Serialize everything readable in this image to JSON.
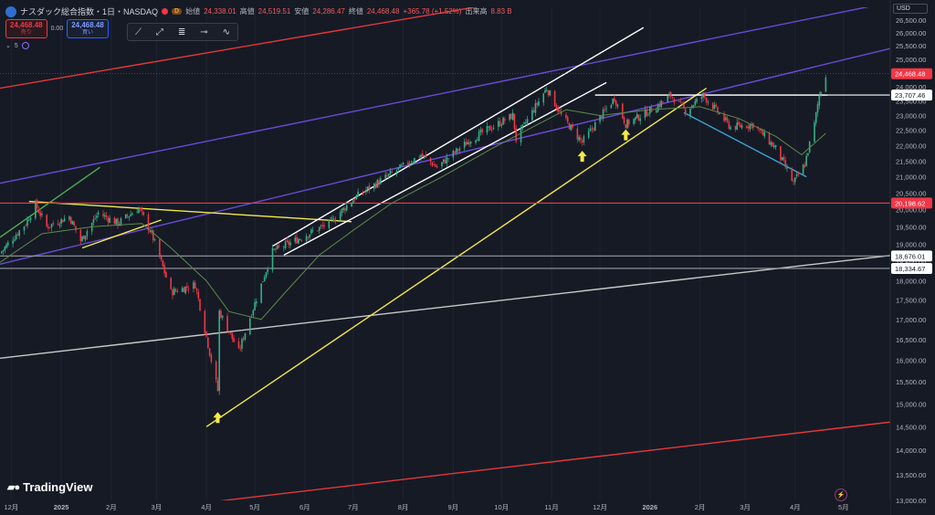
{
  "header": {
    "symbol": "ナスダック総合指数・1日・NASDAQ",
    "badge": "D",
    "open_label": "始値",
    "open_value": "24,338.01",
    "high_label": "高値",
    "high_value": "24,519.51",
    "low_label": "安値",
    "low_value": "24,286.47",
    "close_label": "終値",
    "close_value": "24,468.48",
    "change": "+365.78 (+1.52%)",
    "volume_label": "出来高",
    "volume_value": "8.83 B"
  },
  "trade": {
    "sell_price": "24,468.48",
    "sell_label": "売り",
    "spread": "0.00",
    "buy_price": "24,468.48",
    "buy_label": "買い"
  },
  "indicator": {
    "label": "5"
  },
  "currency": "USD",
  "brand": "TradingView",
  "colors": {
    "background": "#161a25",
    "candle_up": "#33b089",
    "candle_down": "#f23645",
    "ma": "#5d8a4a",
    "yellow_line": "#f5e94a",
    "red_line": "#e53838",
    "purple_line": "#6a4bd8",
    "white_line": "#e8e8e8",
    "cyan_line": "#3aa7d6",
    "arrow": "#f5e94a"
  },
  "chart_data": {
    "type": "candlestick",
    "symbol": "ナスダック総合指数",
    "timeframe": "1日",
    "y_scale": "log",
    "ylim": [
      13000,
      27000
    ],
    "y_ticks": [
      13000,
      13500,
      14000,
      14500,
      15000,
      15500,
      16000,
      16500,
      17000,
      17500,
      18000,
      18500,
      19000,
      19500,
      20000,
      20500,
      21000,
      21500,
      22000,
      22500,
      23000,
      23500,
      24000,
      24500,
      25000,
      25500,
      26000,
      26500
    ],
    "y_tick_labels": [
      "13,000.00",
      "13,500.00",
      "14,000.00",
      "14,500.00",
      "15,000.00",
      "15,500.00",
      "16,000.00",
      "16,500.00",
      "17,000.00",
      "17,500.00",
      "18,000.00",
      "18,500.00",
      "19,000.00",
      "19,500.00",
      "20,000.00",
      "20,500.00",
      "21,000.00",
      "21,500.00",
      "22,000.00",
      "22,500.00",
      "23,000.00",
      "23,500.00",
      "24,000.00",
      "24,500.00",
      "25,000.00",
      "25,500.00",
      "26,000.00",
      "26,500.00"
    ],
    "x_range": [
      "2024-11-24",
      "2026-05-30"
    ],
    "x_ticks": [
      {
        "date": "2024-12-01",
        "label": "12月",
        "bold": false
      },
      {
        "date": "2025-01-01",
        "label": "2025",
        "bold": true
      },
      {
        "date": "2025-02-01",
        "label": "2月",
        "bold": false
      },
      {
        "date": "2025-03-01",
        "label": "3月",
        "bold": false
      },
      {
        "date": "2025-04-01",
        "label": "4月",
        "bold": false
      },
      {
        "date": "2025-05-01",
        "label": "5月",
        "bold": false
      },
      {
        "date": "2025-06-01",
        "label": "6月",
        "bold": false
      },
      {
        "date": "2025-07-01",
        "label": "7月",
        "bold": false
      },
      {
        "date": "2025-08-01",
        "label": "8月",
        "bold": false
      },
      {
        "date": "2025-09-01",
        "label": "9月",
        "bold": false
      },
      {
        "date": "2025-10-01",
        "label": "10月",
        "bold": false
      },
      {
        "date": "2025-11-01",
        "label": "11月",
        "bold": false
      },
      {
        "date": "2025-12-01",
        "label": "12月",
        "bold": false
      },
      {
        "date": "2026-01-01",
        "label": "2026",
        "bold": true
      },
      {
        "date": "2026-02-01",
        "label": "2月",
        "bold": false
      },
      {
        "date": "2026-03-01",
        "label": "3月",
        "bold": false
      },
      {
        "date": "2026-04-01",
        "label": "4月",
        "bold": false
      },
      {
        "date": "2026-05-01",
        "label": "5月",
        "bold": false
      }
    ],
    "price_path": [
      [
        "2024-11-24",
        18750
      ],
      [
        "2024-12-10",
        19600
      ],
      [
        "2024-12-16",
        20150
      ],
      [
        "2024-12-23",
        19500
      ],
      [
        "2025-01-06",
        19800
      ],
      [
        "2025-01-13",
        19100
      ],
      [
        "2025-01-24",
        19900
      ],
      [
        "2025-02-05",
        19600
      ],
      [
        "2025-02-18",
        20050
      ],
      [
        "2025-02-26",
        19300
      ],
      [
        "2025-03-10",
        17700
      ],
      [
        "2025-03-25",
        17900
      ],
      [
        "2025-04-04",
        16000
      ],
      [
        "2025-04-08",
        15300
      ],
      [
        "2025-04-09",
        17200
      ],
      [
        "2025-04-21",
        16200
      ],
      [
        "2025-05-05",
        17900
      ],
      [
        "2025-05-12",
        18800
      ],
      [
        "2025-05-30",
        19200
      ],
      [
        "2025-06-16",
        19600
      ],
      [
        "2025-07-03",
        20400
      ],
      [
        "2025-07-28",
        21200
      ],
      [
        "2025-08-12",
        21700
      ],
      [
        "2025-08-22",
        21300
      ],
      [
        "2025-09-12",
        22200
      ],
      [
        "2025-10-08",
        23000
      ],
      [
        "2025-10-10",
        22200
      ],
      [
        "2025-10-29",
        23950
      ],
      [
        "2025-11-07",
        23000
      ],
      [
        "2025-11-20",
        22100
      ],
      [
        "2025-12-10",
        23600
      ],
      [
        "2025-12-17",
        22700
      ],
      [
        "2026-01-05",
        23300
      ],
      [
        "2026-01-14",
        23700
      ],
      [
        "2026-01-23",
        23150
      ],
      [
        "2026-02-03",
        23700
      ],
      [
        "2026-02-20",
        22600
      ],
      [
        "2026-03-06",
        22700
      ],
      [
        "2026-03-20",
        21900
      ],
      [
        "2026-03-31",
        20800
      ],
      [
        "2026-04-07",
        21400
      ],
      [
        "2026-04-13",
        22700
      ],
      [
        "2026-04-16",
        23700
      ],
      [
        "2026-04-20",
        24468.48
      ]
    ],
    "moving_average": [
      [
        "2024-11-24",
        18500
      ],
      [
        "2024-12-20",
        19300
      ],
      [
        "2025-01-20",
        19500
      ],
      [
        "2025-02-20",
        19600
      ],
      [
        "2025-03-10",
        18900
      ],
      [
        "2025-04-01",
        18000
      ],
      [
        "2025-04-15",
        17200
      ],
      [
        "2025-05-05",
        17000
      ],
      [
        "2025-05-20",
        17700
      ],
      [
        "2025-06-10",
        18700
      ],
      [
        "2025-07-01",
        19400
      ],
      [
        "2025-07-25",
        20200
      ],
      [
        "2025-08-25",
        21000
      ],
      [
        "2025-09-25",
        21900
      ],
      [
        "2025-10-20",
        22600
      ],
      [
        "2025-11-10",
        23200
      ],
      [
        "2025-12-01",
        23000
      ],
      [
        "2026-01-01",
        23200
      ],
      [
        "2026-02-01",
        23300
      ],
      [
        "2026-02-25",
        22900
      ],
      [
        "2026-03-20",
        22300
      ],
      [
        "2026-04-05",
        21700
      ],
      [
        "2026-04-20",
        22400
      ]
    ],
    "horizontal_levels": [
      {
        "value": 24468.48,
        "label": "24,468.48",
        "style": "current-price",
        "color": "#f23645"
      },
      {
        "value": 23707.46,
        "label": "23,707.46",
        "style": "white",
        "color": "#ffffff"
      },
      {
        "value": 20198.62,
        "label": "20,198.62",
        "style": "red",
        "color": "#f23645"
      },
      {
        "value": 18676.01,
        "label": "18,676.01",
        "style": "gray",
        "color": "#ffffff"
      },
      {
        "value": 18334.67,
        "label": "18,334.67",
        "style": "gray",
        "color": "#ffffff"
      }
    ],
    "trend_lines": [
      {
        "color": "#e53838",
        "from": [
          "2024-11-24",
          23950
        ],
        "to": [
          "2026-05-30",
          30000
        ]
      },
      {
        "color": "#e53838",
        "from": [
          "2024-11-24",
          12500
        ],
        "to": [
          "2026-05-30",
          14600
        ]
      },
      {
        "color": "#6a4bd8",
        "from": [
          "2024-11-24",
          20800
        ],
        "to": [
          "2026-05-30",
          27200
        ]
      },
      {
        "color": "#6a4bd8",
        "from": [
          "2024-11-24",
          18450
        ],
        "to": [
          "2026-05-30",
          25400
        ]
      },
      {
        "color": "#c8c8c8",
        "from": [
          "2024-11-24",
          16050
        ],
        "to": [
          "2026-05-30",
          18690
        ]
      },
      {
        "color": "#f5e94a",
        "from": [
          "2025-04-01",
          14500
        ],
        "to": [
          "2026-02-05",
          23950
        ]
      },
      {
        "color": "#f5e94a",
        "from": [
          "2024-12-12",
          20250
        ],
        "to": [
          "2025-06-30",
          19650
        ]
      },
      {
        "color": "#f5e94a",
        "from": [
          "2025-01-14",
          18900
        ],
        "to": [
          "2025-03-04",
          19700
        ]
      },
      {
        "color": "#ffffff",
        "from": [
          "2025-05-12",
          18950
        ],
        "to": [
          "2025-12-28",
          26200
        ]
      },
      {
        "color": "#ffffff",
        "from": [
          "2025-05-19",
          18700
        ],
        "to": [
          "2025-12-05",
          24150
        ]
      },
      {
        "color": "#ffffff",
        "from": [
          "2025-11-28",
          23707.46
        ],
        "to": [
          "2026-04-21",
          23707.46
        ]
      },
      {
        "color": "#4caf50",
        "from": [
          "2024-11-24",
          19200
        ],
        "to": [
          "2025-01-25",
          21300
        ]
      },
      {
        "color": "#3aa7d6",
        "from": [
          "2026-01-22",
          23100
        ],
        "to": [
          "2026-04-08",
          21000
        ]
      }
    ],
    "annotations": [
      {
        "type": "up-arrow",
        "date": "2025-04-08",
        "value": 14700
      },
      {
        "type": "up-arrow",
        "date": "2025-11-20",
        "value": 21650
      },
      {
        "type": "up-arrow",
        "date": "2025-12-17",
        "value": 22350
      }
    ]
  }
}
